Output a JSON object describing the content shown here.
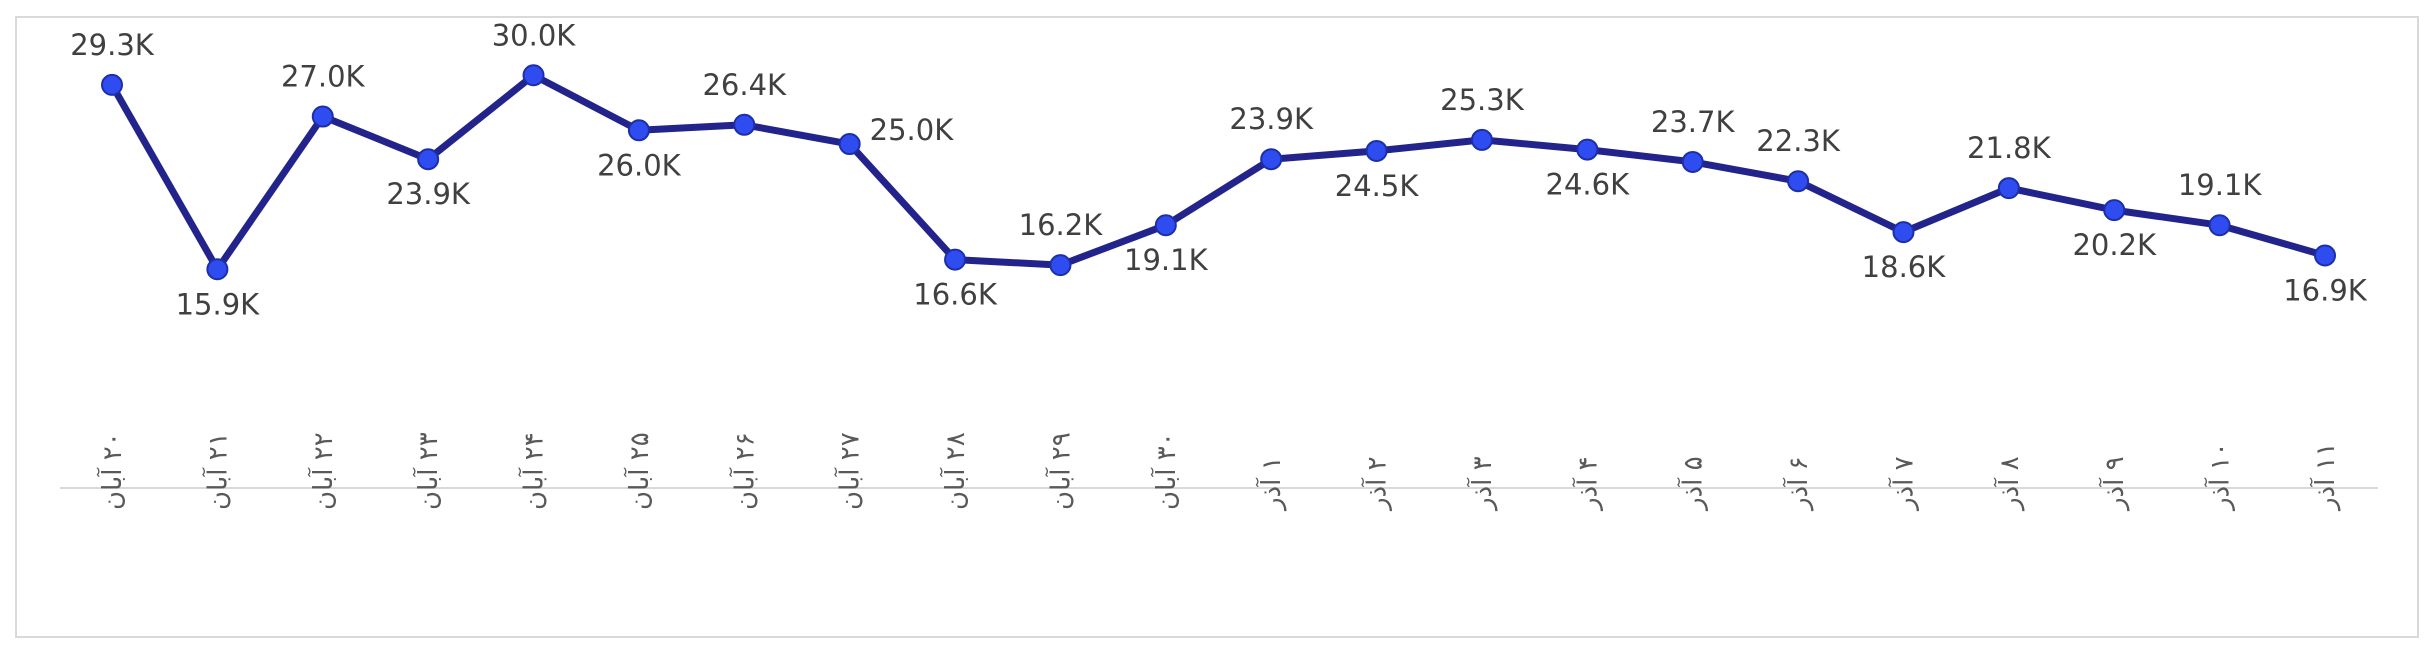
{
  "chart_data": {
    "type": "line",
    "categories": [
      "۲۰ آبان",
      "۲۱ آبان",
      "۲۲ آبان",
      "۲۳ آبان",
      "۲۴ آبان",
      "۲۵ آبان",
      "۲۶ آبان",
      "۲۷ آبان",
      "۲۸ آبان",
      "۲۹ آبان",
      "۳۰ آبان",
      "۱ آذر",
      "۲ آذر",
      "۳ آذر",
      "۴ آذر",
      "۵ آذر",
      "۶ آذر",
      "۷ آذر",
      "۸ آذر",
      "۹ آذر",
      "۱۰ آذر",
      "۱۱ آذر"
    ],
    "series": [
      {
        "values": [
          29300,
          15900,
          27000,
          23900,
          30000,
          26000,
          26400,
          25000,
          16600,
          16200,
          19100,
          23900,
          24500,
          25300,
          24600,
          23700,
          22300,
          18600,
          21800,
          20200,
          19100,
          16900
        ],
        "labels": [
          "29.3K",
          "15.9K",
          "27.0K",
          "23.9K",
          "30.0K",
          "26.0K",
          "26.4K",
          "25.0K",
          "16.6K",
          "16.2K",
          "19.1K",
          "23.9K",
          "24.5K",
          "25.3K",
          "24.6K",
          "23.7K",
          "22.3K",
          "18.6K",
          "21.8K",
          "20.2K",
          "19.1K",
          "16.9K"
        ],
        "label_positions": [
          "above",
          "below",
          "above",
          "below",
          "above",
          "below",
          "above",
          "right",
          "below",
          "above",
          "below",
          "above",
          "below",
          "above",
          "below",
          "above",
          "above",
          "below",
          "above",
          "below",
          "above",
          "below"
        ]
      }
    ],
    "ylim": [
      0,
      33000
    ],
    "title": "",
    "xlabel": "",
    "ylabel": "",
    "grid": false,
    "legend": "none",
    "line_color": "#23238c",
    "marker_color": "#2f4cf0",
    "marker_edge_color": "#1c2fa8",
    "axis_color": "#d9d9d9"
  }
}
